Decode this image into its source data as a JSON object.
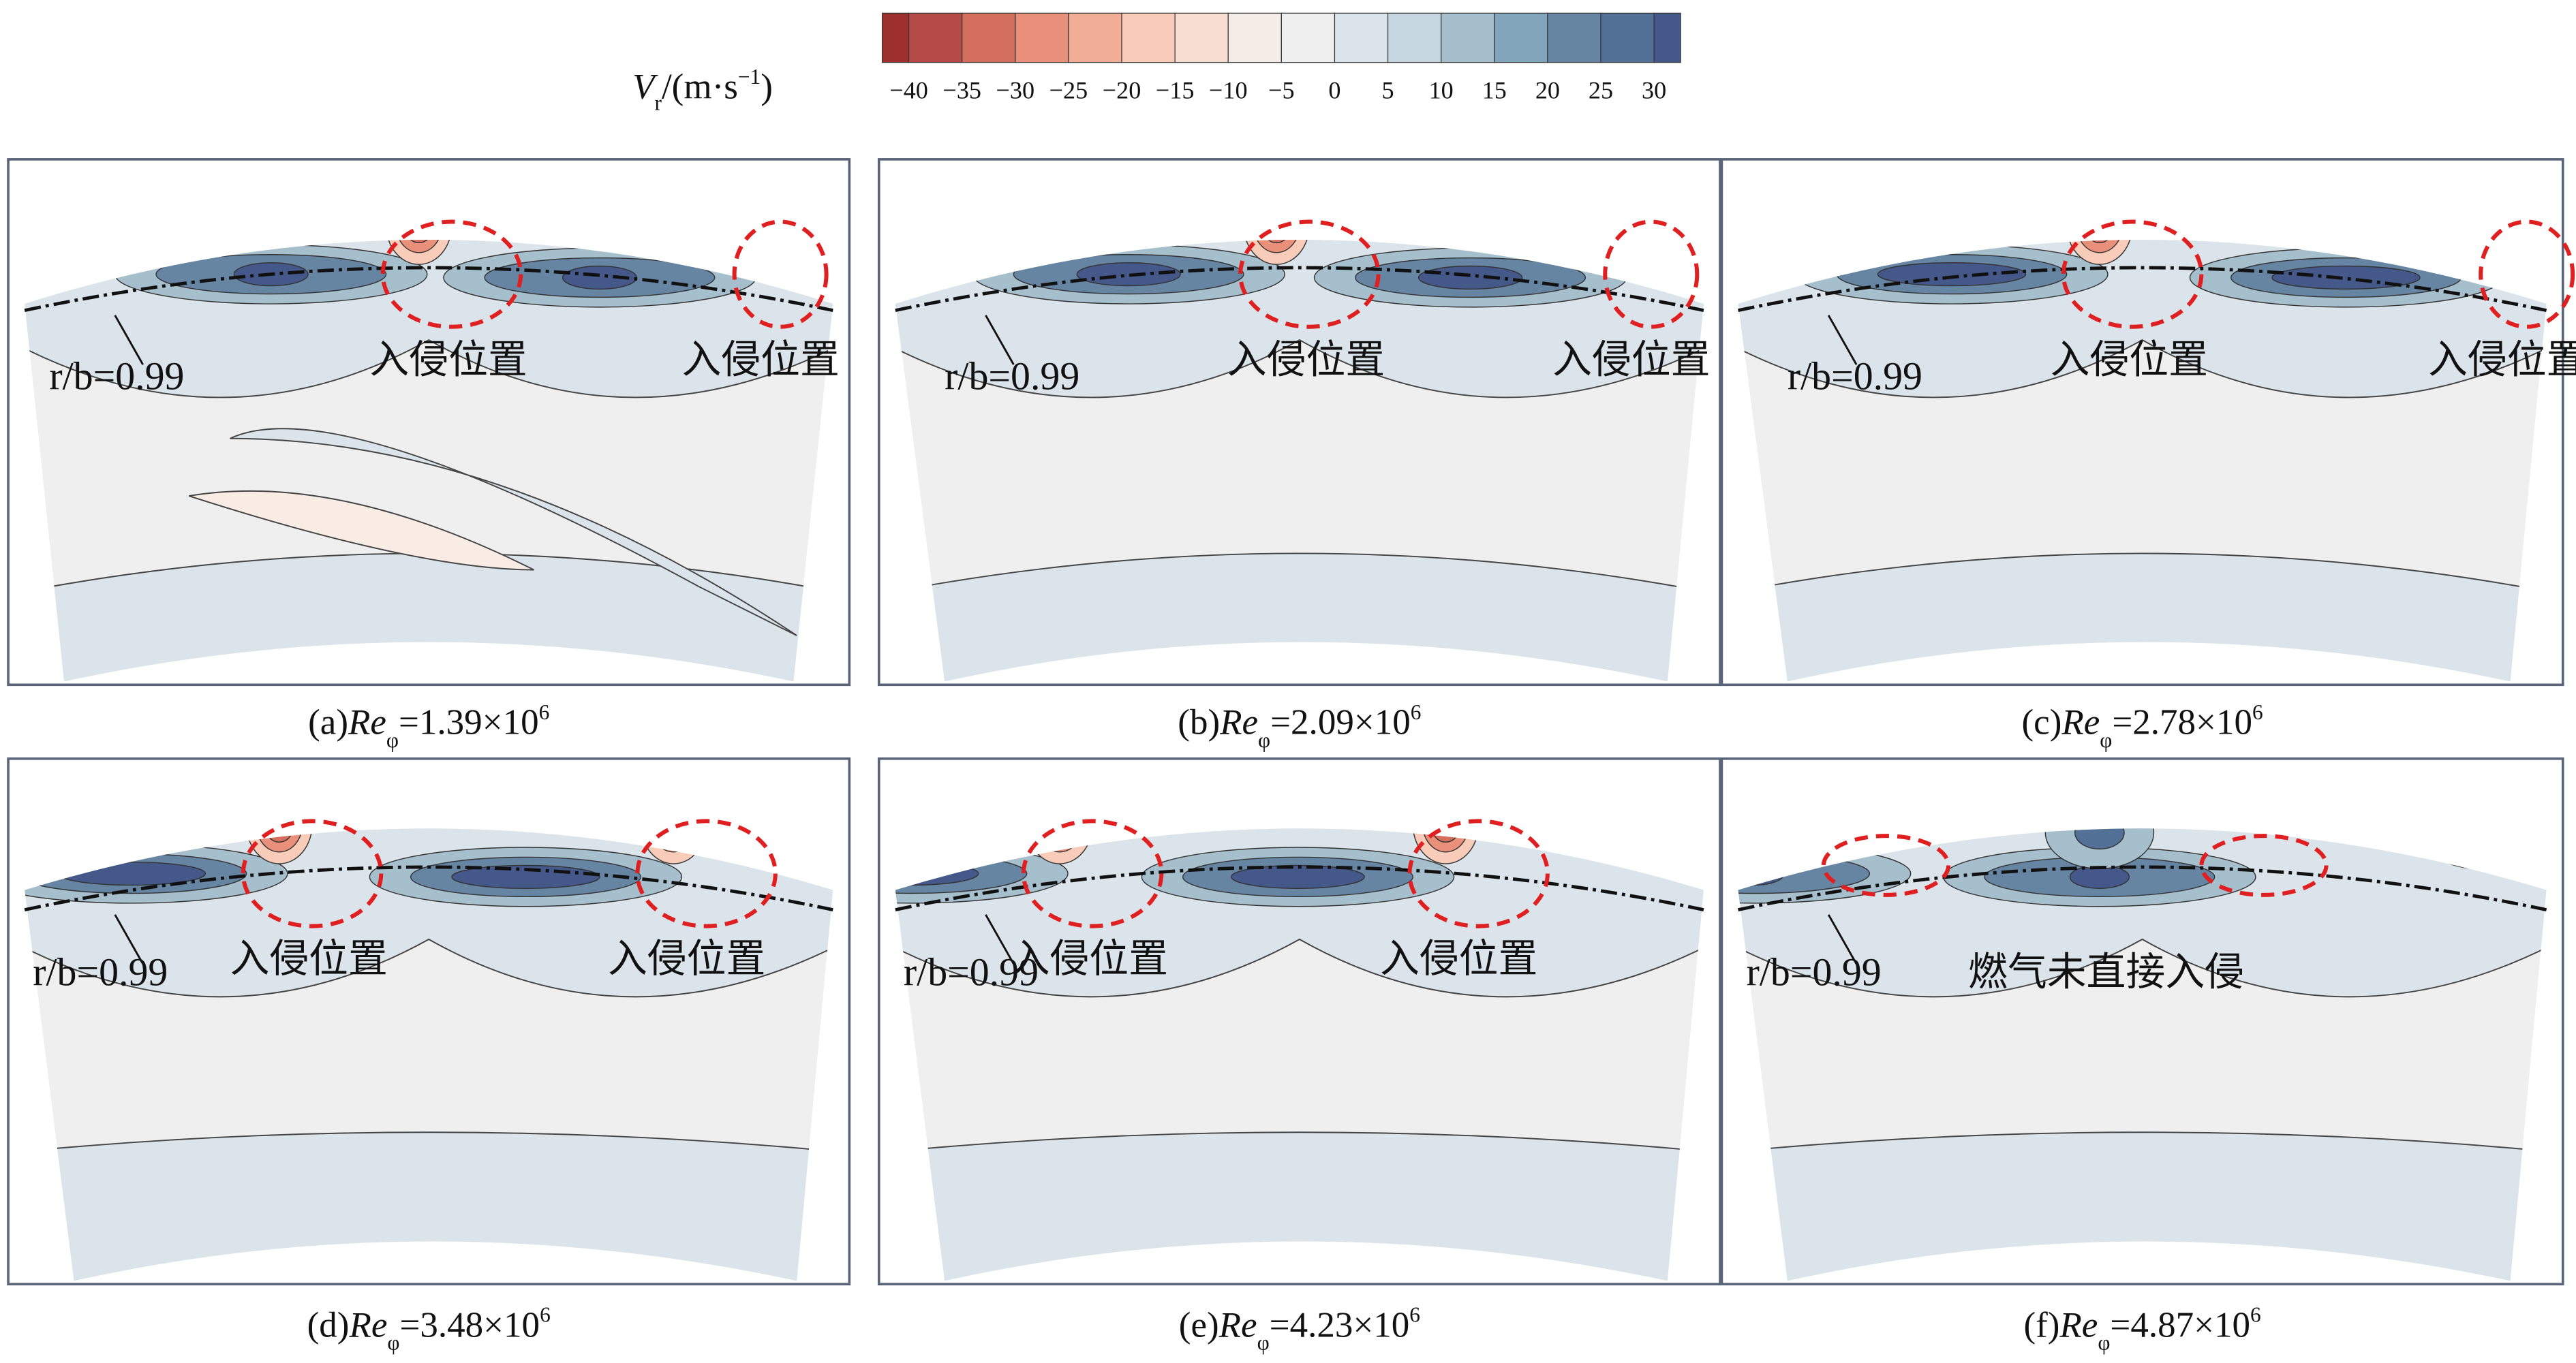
{
  "chart_data": {
    "type": "heatmap",
    "title": "",
    "colorbar": {
      "label_main": "V",
      "label_sub": "r",
      "label_unit": "/(m·s",
      "label_exp": "−1",
      "label_close": ")",
      "ticks": [
        "−40",
        "−35",
        "−30",
        "−25",
        "−20",
        "−15",
        "−10",
        "−5",
        "0",
        "5",
        "10",
        "15",
        "20",
        "25",
        "30"
      ],
      "range": [
        -42.5,
        32.5
      ],
      "colors": [
        "#9e2f2f",
        "#b64a47",
        "#d36f5c",
        "#e8907a",
        "#f1ad95",
        "#f8ccb8",
        "#f8ddd1",
        "#f4ece7",
        "#efefef",
        "#dbe4ea",
        "#c6d6e0",
        "#a6bfcd",
        "#81a5ba",
        "#6585a3",
        "#537096",
        "#44598a"
      ]
    },
    "annotation_line": "r/b=0.99",
    "panels": [
      {
        "tag": "(a)",
        "re": "Re",
        "sub": "φ",
        "value": "=1.39×10",
        "exp": "6",
        "notes": [
          "入侵位置",
          "入侵位置"
        ]
      },
      {
        "tag": "(b)",
        "re": "Re",
        "sub": "φ",
        "value": "=2.09×10",
        "exp": "6",
        "notes": [
          "入侵位置",
          "入侵位置"
        ]
      },
      {
        "tag": "(c)",
        "re": "Re",
        "sub": "φ",
        "value": "=2.78×10",
        "exp": "6",
        "notes": [
          "入侵位置",
          "入侵位置"
        ]
      },
      {
        "tag": "(d)",
        "re": "Re",
        "sub": "φ",
        "value": "=3.48×10",
        "exp": "6",
        "notes": [
          "入侵位置",
          "入侵位置"
        ]
      },
      {
        "tag": "(e)",
        "re": "Re",
        "sub": "φ",
        "value": "=4.23×10",
        "exp": "6",
        "notes": [
          "入侵位置",
          "入侵位置"
        ]
      },
      {
        "tag": "(f)",
        "re": "Re",
        "sub": "φ",
        "value": "=4.87×10",
        "exp": "6",
        "notes": [
          "燃气未直接入侵"
        ]
      }
    ]
  }
}
